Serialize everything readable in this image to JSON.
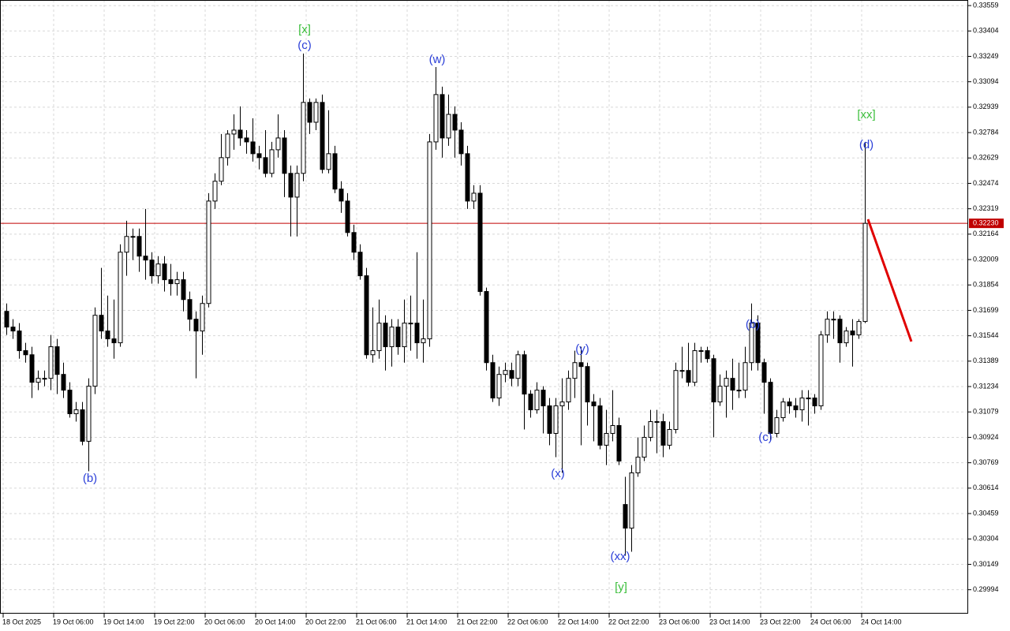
{
  "chart_data": {
    "type": "candlestick",
    "up_color": "#ffffff",
    "down_color": "#000000",
    "grid": true,
    "ylim": [
      0.29848,
      0.33593
    ],
    "yticks": [
      0.33559,
      0.33404,
      0.33249,
      0.33094,
      0.32939,
      0.32784,
      0.32629,
      0.32474,
      0.32319,
      0.32164,
      0.32009,
      0.31854,
      0.31699,
      0.31544,
      0.31389,
      0.31234,
      0.31079,
      0.30924,
      0.30769,
      0.30614,
      0.30459,
      0.30304,
      0.30149,
      0.29994
    ],
    "last_price": {
      "value": 0.3223,
      "label": "0.32230"
    },
    "last_price_color": "#c00000",
    "categories": [
      "18 Oct 2025",
      null,
      null,
      null,
      null,
      null,
      null,
      null,
      "19 Oct 06:00",
      null,
      null,
      null,
      null,
      null,
      null,
      null,
      "19 Oct 14:00",
      null,
      null,
      null,
      null,
      null,
      null,
      null,
      "19 Oct 22:00",
      null,
      null,
      null,
      null,
      null,
      null,
      null,
      "20 Oct 06:00",
      null,
      null,
      null,
      null,
      null,
      null,
      null,
      "20 Oct 14:00",
      null,
      null,
      null,
      null,
      null,
      null,
      null,
      "20 Oct 22:00",
      null,
      null,
      null,
      null,
      null,
      null,
      null,
      "21 Oct 06:00",
      null,
      null,
      null,
      null,
      null,
      null,
      null,
      "21 Oct 14:00",
      null,
      null,
      null,
      null,
      null,
      null,
      null,
      "21 Oct 22:00",
      null,
      null,
      null,
      null,
      null,
      null,
      null,
      "22 Oct 06:00",
      null,
      null,
      null,
      null,
      null,
      null,
      null,
      "22 Oct 14:00",
      null,
      null,
      null,
      null,
      null,
      null,
      null,
      "22 Oct 22:00",
      null,
      null,
      null,
      null,
      null,
      null,
      null,
      "23 Oct 06:00",
      null,
      null,
      null,
      null,
      null,
      null,
      null,
      "23 Oct 14:00",
      null,
      null,
      null,
      null,
      null,
      null,
      null,
      "23 Oct 22:00",
      null,
      null,
      null,
      null,
      null,
      null,
      null,
      "24 Oct 06:00",
      null,
      null,
      null,
      null,
      null,
      null,
      null,
      "24 Oct 14:00"
    ],
    "ohlc": [
      [
        0.31693,
        0.31741,
        0.31549,
        0.31597
      ],
      [
        0.31597,
        0.31645,
        0.31525,
        0.31573
      ],
      [
        0.31573,
        0.31621,
        0.31404,
        0.31453
      ],
      [
        0.31453,
        0.31501,
        0.3138,
        0.31428
      ],
      [
        0.31428,
        0.31477,
        0.31164,
        0.3126
      ],
      [
        0.3126,
        0.31332,
        0.31212,
        0.31284
      ],
      [
        0.31284,
        0.31332,
        0.31236,
        0.31284
      ],
      [
        0.31284,
        0.31549,
        0.31212,
        0.31477
      ],
      [
        0.31477,
        0.31525,
        0.31188,
        0.31308
      ],
      [
        0.31308,
        0.3138,
        0.31164,
        0.31212
      ],
      [
        0.31212,
        0.3126,
        0.31044,
        0.31068
      ],
      [
        0.31068,
        0.3114,
        0.3102,
        0.31092
      ],
      [
        0.31092,
        0.3114,
        0.30876,
        0.309
      ],
      [
        0.309,
        0.31284,
        0.30717,
        0.31236
      ],
      [
        0.31236,
        0.31717,
        0.31188,
        0.31669
      ],
      [
        0.31669,
        0.31958,
        0.31525,
        0.31573
      ],
      [
        0.31573,
        0.31789,
        0.31477,
        0.31525
      ],
      [
        0.31525,
        0.31765,
        0.31404,
        0.31501
      ],
      [
        0.31501,
        0.32102,
        0.31477,
        0.32054
      ],
      [
        0.32054,
        0.32246,
        0.3191,
        0.3215
      ],
      [
        0.3215,
        0.32198,
        0.32006,
        0.3215
      ],
      [
        0.3215,
        0.32198,
        0.31934,
        0.3203
      ],
      [
        0.3203,
        0.32318,
        0.31886,
        0.32006
      ],
      [
        0.32006,
        0.32054,
        0.31862,
        0.3191
      ],
      [
        0.3191,
        0.3203,
        0.31862,
        0.31982
      ],
      [
        0.31982,
        0.3203,
        0.31814,
        0.31886
      ],
      [
        0.31886,
        0.31982,
        0.31789,
        0.31862
      ],
      [
        0.31862,
        0.31934,
        0.31789,
        0.31886
      ],
      [
        0.31886,
        0.31934,
        0.31693,
        0.31765
      ],
      [
        0.31765,
        0.31814,
        0.31573,
        0.31645
      ],
      [
        0.31645,
        0.31693,
        0.31284,
        0.31573
      ],
      [
        0.31573,
        0.31789,
        0.31428,
        0.31741
      ],
      [
        0.31741,
        0.32414,
        0.31717,
        0.32366
      ],
      [
        0.32366,
        0.32535,
        0.32318,
        0.32487
      ],
      [
        0.32487,
        0.32775,
        0.32463,
        0.32631
      ],
      [
        0.32631,
        0.32799,
        0.32583,
        0.32775
      ],
      [
        0.32775,
        0.32895,
        0.32679,
        0.32799
      ],
      [
        0.32799,
        0.32944,
        0.32703,
        0.32751
      ],
      [
        0.32751,
        0.32799,
        0.32655,
        0.32727
      ],
      [
        0.32727,
        0.32871,
        0.32607,
        0.32655
      ],
      [
        0.32655,
        0.32703,
        0.32559,
        0.32631
      ],
      [
        0.32631,
        0.32799,
        0.32511,
        0.32535
      ],
      [
        0.32535,
        0.32727,
        0.32511,
        0.32679
      ],
      [
        0.32679,
        0.32895,
        0.32631,
        0.32751
      ],
      [
        0.32751,
        0.32799,
        0.3239,
        0.32535
      ],
      [
        0.32535,
        0.32583,
        0.3215,
        0.3239
      ],
      [
        0.3239,
        0.32583,
        0.3215,
        0.32535
      ],
      [
        0.32535,
        0.33266,
        0.32487,
        0.32968
      ],
      [
        0.32968,
        0.32992,
        0.32775,
        0.32847
      ],
      [
        0.32847,
        0.32992,
        0.32799,
        0.32968
      ],
      [
        0.32968,
        0.33016,
        0.32535,
        0.32559
      ],
      [
        0.32559,
        0.3292,
        0.32535,
        0.32655
      ],
      [
        0.32655,
        0.32703,
        0.32414,
        0.32439
      ],
      [
        0.32439,
        0.32487,
        0.32294,
        0.32366
      ],
      [
        0.32366,
        0.32414,
        0.3215,
        0.32174
      ],
      [
        0.32174,
        0.32222,
        0.32006,
        0.32054
      ],
      [
        0.32054,
        0.32102,
        0.31886,
        0.3191
      ],
      [
        0.3191,
        0.31958,
        0.31404,
        0.31428
      ],
      [
        0.31428,
        0.31717,
        0.3138,
        0.31453
      ],
      [
        0.31453,
        0.31765,
        0.31404,
        0.31621
      ],
      [
        0.31621,
        0.31669,
        0.31332,
        0.31477
      ],
      [
        0.31477,
        0.31645,
        0.31356,
        0.31597
      ],
      [
        0.31597,
        0.31645,
        0.31428,
        0.31477
      ],
      [
        0.31477,
        0.31765,
        0.3138,
        0.31621
      ],
      [
        0.31621,
        0.31789,
        0.31453,
        0.31621
      ],
      [
        0.31621,
        0.32054,
        0.31404,
        0.31501
      ],
      [
        0.31501,
        0.31765,
        0.3138,
        0.31525
      ],
      [
        0.31525,
        0.32775,
        0.31477,
        0.32727
      ],
      [
        0.32727,
        0.33184,
        0.32679,
        0.33016
      ],
      [
        0.33016,
        0.33064,
        0.32631,
        0.32751
      ],
      [
        0.32751,
        0.33016,
        0.32703,
        0.32895
      ],
      [
        0.32895,
        0.32944,
        0.32631,
        0.32799
      ],
      [
        0.32799,
        0.32847,
        0.32583,
        0.32655
      ],
      [
        0.32655,
        0.32703,
        0.32318,
        0.32366
      ],
      [
        0.32366,
        0.32463,
        0.32318,
        0.32414
      ],
      [
        0.32414,
        0.32463,
        0.31789,
        0.31814
      ],
      [
        0.31814,
        0.31838,
        0.31332,
        0.3138
      ],
      [
        0.3138,
        0.31428,
        0.3114,
        0.31164
      ],
      [
        0.31164,
        0.31356,
        0.31116,
        0.31308
      ],
      [
        0.31308,
        0.3138,
        0.3126,
        0.31332
      ],
      [
        0.31332,
        0.3138,
        0.31236,
        0.31284
      ],
      [
        0.31284,
        0.31453,
        0.31236,
        0.31428
      ],
      [
        0.31428,
        0.31453,
        0.30972,
        0.31188
      ],
      [
        0.31188,
        0.31212,
        0.31044,
        0.31092
      ],
      [
        0.31092,
        0.3126,
        0.31068,
        0.31212
      ],
      [
        0.31212,
        0.31236,
        0.30948,
        0.31116
      ],
      [
        0.31116,
        0.31164,
        0.30876,
        0.30948
      ],
      [
        0.30948,
        0.31164,
        0.30803,
        0.31116
      ],
      [
        0.31116,
        0.31284,
        0.30707,
        0.3114
      ],
      [
        0.3114,
        0.31332,
        0.31092,
        0.31284
      ],
      [
        0.31284,
        0.31453,
        0.31164,
        0.3138
      ],
      [
        0.3138,
        0.31477,
        0.30876,
        0.31356
      ],
      [
        0.31356,
        0.3138,
        0.30996,
        0.3114
      ],
      [
        0.3114,
        0.31188,
        0.309,
        0.31116
      ],
      [
        0.31116,
        0.31164,
        0.30851,
        0.30876
      ],
      [
        0.30876,
        0.31092,
        0.30755,
        0.30948
      ],
      [
        0.30948,
        0.31212,
        0.309,
        0.30996
      ],
      [
        0.30996,
        0.31044,
        0.30755,
        0.30779
      ],
      [
        0.30514,
        0.30683,
        0.30202,
        0.3037
      ],
      [
        0.3037,
        0.30755,
        0.30226,
        0.30707
      ],
      [
        0.30707,
        0.30924,
        0.30683,
        0.30803
      ],
      [
        0.30803,
        0.30996,
        0.30779,
        0.30924
      ],
      [
        0.30924,
        0.31092,
        0.309,
        0.3102
      ],
      [
        0.3102,
        0.31092,
        0.30827,
        0.3102
      ],
      [
        0.3102,
        0.31068,
        0.30803,
        0.30876
      ],
      [
        0.30876,
        0.3102,
        0.30851,
        0.30972
      ],
      [
        0.30972,
        0.3138,
        0.30948,
        0.31332
      ],
      [
        0.31332,
        0.31477,
        0.31284,
        0.31332
      ],
      [
        0.31332,
        0.31501,
        0.31236,
        0.3126
      ],
      [
        0.3126,
        0.31501,
        0.31236,
        0.31453
      ],
      [
        0.31453,
        0.31477,
        0.3138,
        0.31453
      ],
      [
        0.31453,
        0.31477,
        0.3138,
        0.31404
      ],
      [
        0.31404,
        0.31428,
        0.30924,
        0.3114
      ],
      [
        0.3114,
        0.31308,
        0.31116,
        0.31236
      ],
      [
        0.31236,
        0.31332,
        0.31044,
        0.31284
      ],
      [
        0.31284,
        0.31404,
        0.31092,
        0.31212
      ],
      [
        0.31212,
        0.3138,
        0.31164,
        0.31212
      ],
      [
        0.31212,
        0.31477,
        0.31164,
        0.3138
      ],
      [
        0.3138,
        0.31741,
        0.31332,
        0.31621
      ],
      [
        0.31621,
        0.31669,
        0.31332,
        0.3138
      ],
      [
        0.3138,
        0.31404,
        0.31068,
        0.3126
      ],
      [
        0.3126,
        0.31284,
        0.309,
        0.30948
      ],
      [
        0.30948,
        0.31092,
        0.30924,
        0.31044
      ],
      [
        0.31044,
        0.31164,
        0.3102,
        0.3114
      ],
      [
        0.3114,
        0.31164,
        0.31068,
        0.31116
      ],
      [
        0.31116,
        0.31164,
        0.31044,
        0.31092
      ],
      [
        0.31092,
        0.31212,
        0.3102,
        0.31164
      ],
      [
        0.31164,
        0.31212,
        0.30996,
        0.31164
      ],
      [
        0.31164,
        0.31188,
        0.31068,
        0.31116
      ],
      [
        0.31116,
        0.31573,
        0.31092,
        0.31549
      ],
      [
        0.31549,
        0.31693,
        0.31501,
        0.31645
      ],
      [
        0.31645,
        0.31693,
        0.31525,
        0.31645
      ],
      [
        0.31645,
        0.31669,
        0.3138,
        0.31501
      ],
      [
        0.31501,
        0.31597,
        0.31477,
        0.31573
      ],
      [
        0.31573,
        0.31645,
        0.31356,
        0.31549
      ],
      [
        0.31549,
        0.31645,
        0.31525,
        0.31631
      ],
      [
        0.31631,
        0.32727,
        0.31621,
        0.3223
      ]
    ],
    "annotations": [
      {
        "text": "[x]",
        "color": "#3cbf3c"
      },
      {
        "text": "(c)",
        "color": "#2b3fd8"
      },
      {
        "text": "(w)",
        "color": "#2b3fd8"
      },
      {
        "text": "[xx]",
        "color": "#3cbf3c"
      },
      {
        "text": "(d)",
        "color": "#2b3fd8"
      },
      {
        "text": "(b)",
        "color": "#2b3fd8"
      },
      {
        "text": "(y)",
        "color": "#2b3fd8"
      },
      {
        "text": "(x)",
        "color": "#2b3fd8"
      },
      {
        "text": "(b)",
        "color": "#2b3fd8"
      },
      {
        "text": "(c)",
        "color": "#2b3fd8"
      },
      {
        "text": "(xx)",
        "color": "#2b3fd8"
      },
      {
        "text": "[y]",
        "color": "#3cbf3c"
      }
    ]
  }
}
